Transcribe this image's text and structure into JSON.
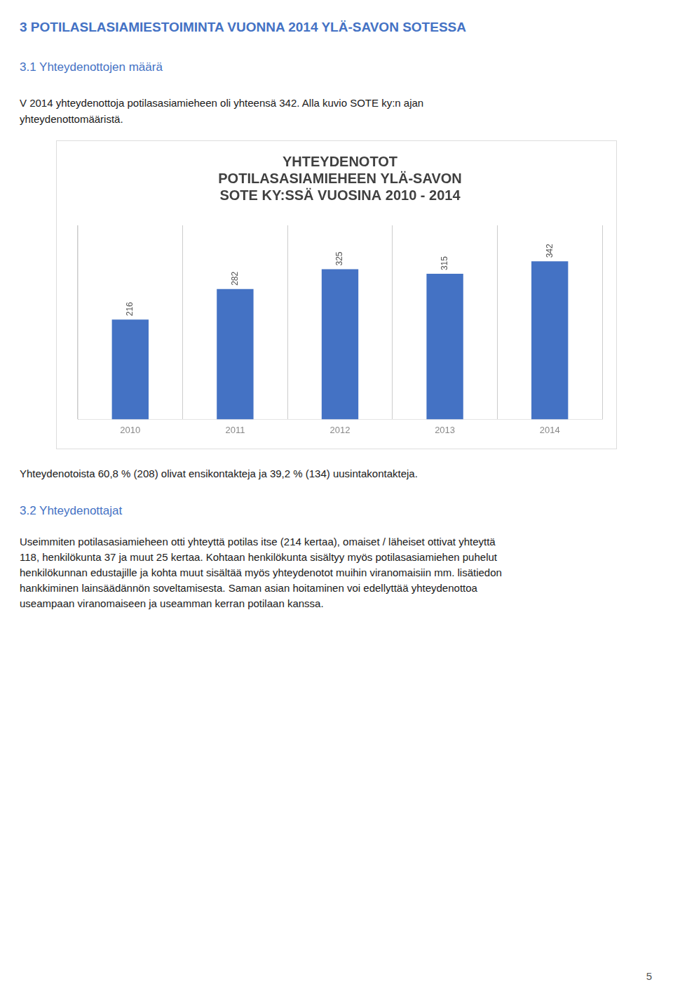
{
  "page_title": "3 POTILASLASIAMIESTOIMINTA VUONNA 2014 YLÄ-SAVON SOTESSA",
  "section_title": "3.1 Yhteydenottojen määrä",
  "intro": [
    "V 2014 yhteydenottoja potilasasiamieheen oli yhteensä 342. Alla kuvio SOTE ky:n ajan",
    "yhteydenottomääristä."
  ],
  "chart_data": {
    "type": "bar",
    "title": "YHTEYDENOTOT\nPOTILASASIAMIEHEEN YLÄ-SAVON\nSOTE KY:SSÄ VUOSINA 2010 - 2014",
    "categories": [
      "2010",
      "2011",
      "2012",
      "2013",
      "2014"
    ],
    "values": [
      216,
      282,
      325,
      315,
      342
    ],
    "color": "#4472C4",
    "ylim": [
      0,
      420
    ],
    "tick_labels": "x",
    "grid": "x",
    "data_labels": true
  },
  "footer_text": "Yhteydenotoista 60,8 % (208) olivat ensikontakteja ja 39,2 % (134) uusintakontakteja.",
  "section_title2": "3.2 Yhteydenottajat",
  "body": [
    "Useimmiten potilasasiamieheen otti yhteyttä potilas itse (214 kertaa), omaiset / läheiset ottivat yhteyttä",
    "118, henkilökunta 37 ja muut 25 kertaa.  Kohtaan henkilökunta sisältyy myös potilasasiamiehen puhelut",
    "henkilökunnan edustajille ja kohta muut sisältää myös yhteydenotot muihin viranomaisiin mm. lisätiedon",
    "hankkiminen lainsäädännön soveltamisesta. Saman asian hoitaminen voi edellyttää yhteydenottoa",
    "useampaan viranomaiseen ja useamman kerran potilaan kanssa."
  ],
  "page_number": "5"
}
